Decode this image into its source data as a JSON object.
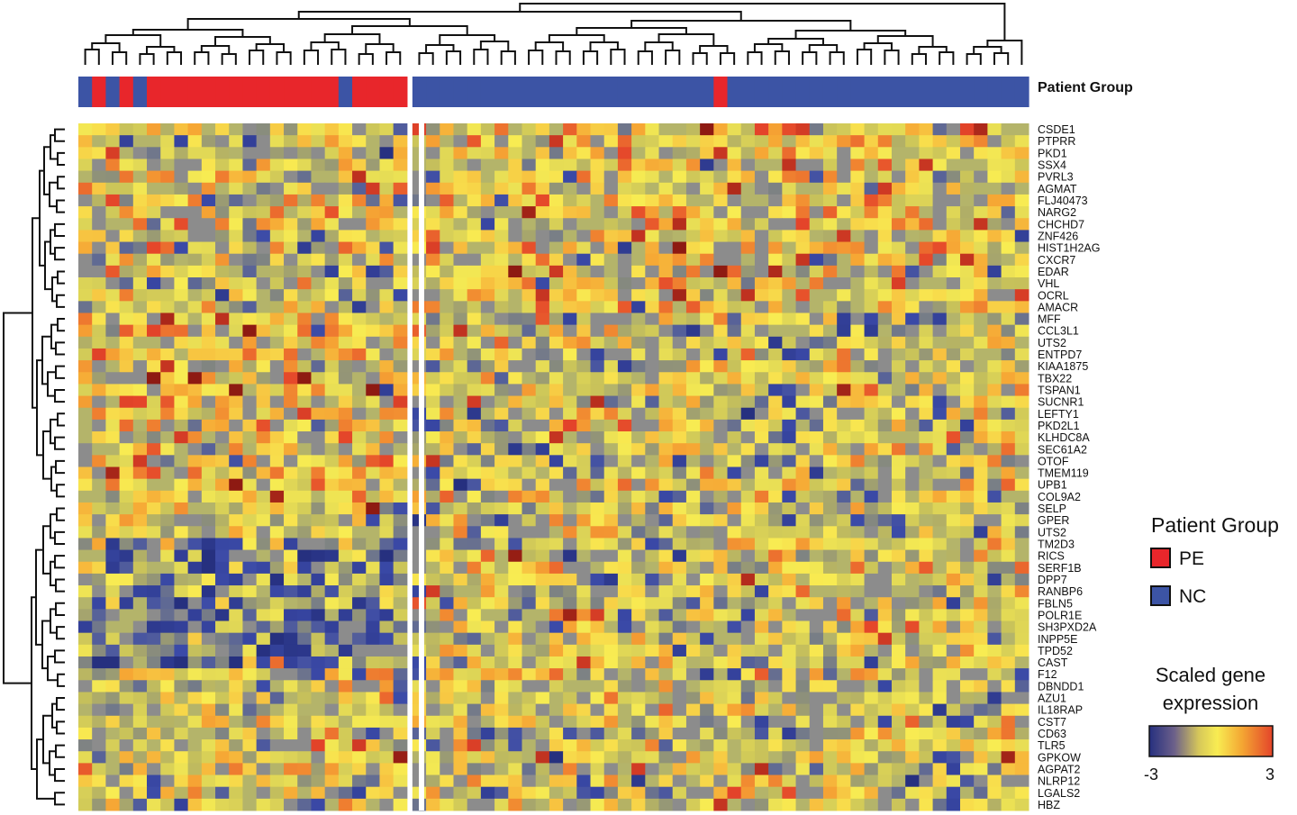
{
  "chart_data": {
    "type": "heatmap",
    "title": "",
    "column_annotation": {
      "label": "Patient Group",
      "groups": [
        "NC",
        "PE",
        "NC",
        "PE",
        "NC",
        "PE",
        "PE",
        "PE",
        "PE",
        "PE",
        "PE",
        "PE",
        "PE",
        "PE",
        "PE",
        "PE",
        "PE",
        "PE",
        "PE",
        "NC",
        "PE",
        "PE",
        "PE",
        "PE",
        "NC",
        "NC",
        "NC",
        "NC",
        "NC",
        "NC",
        "NC",
        "NC",
        "NC",
        "NC",
        "NC",
        "NC",
        "NC",
        "NC",
        "NC",
        "NC",
        "NC",
        "NC",
        "NC",
        "NC",
        "NC",
        "NC",
        "PE",
        "NC",
        "NC",
        "NC",
        "NC",
        "NC",
        "NC",
        "NC",
        "NC",
        "NC",
        "NC",
        "NC",
        "NC",
        "NC",
        "NC",
        "NC",
        "NC",
        "NC",
        "NC",
        "NC",
        "NC",
        "NC",
        "NC"
      ]
    },
    "genes": [
      "CSDE1",
      "PTPRR",
      "PKD1",
      "SSX4",
      "PVRL3",
      "AGMAT",
      "FLJ40473",
      "NARG2",
      "CHCHD7",
      "ZNF426",
      "HIST1H2AG",
      "CXCR7",
      "EDAR",
      "VHL",
      "OCRL",
      "AMACR",
      "MFF",
      "CCL3L1",
      "UTS2",
      "ENTPD7",
      "KIAA1875",
      "TBX22",
      "TSPAN1",
      "SUCNR1",
      "LEFTY1",
      "PKD2L1",
      "KLHDC8A",
      "SEC61A2",
      "OTOF",
      "TMEM119",
      "UPB1",
      "COL9A2",
      "SELP",
      "GPER",
      "UTS2",
      "TM2D3",
      "RICS",
      "SERF1B",
      "DPP7",
      "RANBP6",
      "FBLN5",
      "POLR1E",
      "SH3PXD2A",
      "INPP5E",
      "TPD52",
      "CAST",
      "F12",
      "DBNDD1",
      "AZU1",
      "IL18RAP",
      "CST7",
      "CD63",
      "TLR5",
      "GPKOW",
      "AGPAT2",
      "NLRP12",
      "LGALS2",
      "HBZ"
    ],
    "n_samples": 69,
    "split_after_column": 24,
    "value_range": [
      -3,
      3
    ],
    "missing_color": "#8c8c8c",
    "colorscale": [
      "#2b2f8c",
      "#f6e84a",
      "#e4442a"
    ],
    "row_dendrogram": true,
    "column_dendrogram": true
  },
  "legend": {
    "group_title": "Patient Group",
    "items": [
      {
        "label": "PE",
        "color": "#e8262b"
      },
      {
        "label": "NC",
        "color": "#3c54a5"
      }
    ],
    "scale_title_line1": "Scaled gene",
    "scale_title_line2": "expression",
    "scale_min": "-3",
    "scale_max": "3"
  },
  "annotation_bar_label": "Patient Group"
}
